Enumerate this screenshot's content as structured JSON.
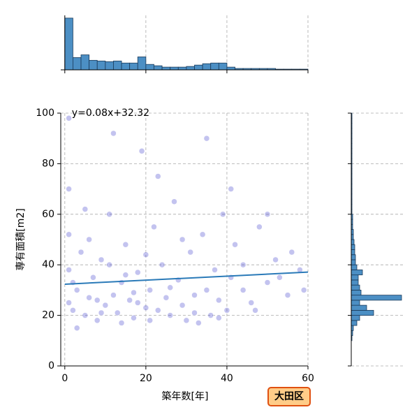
{
  "chart_data": {
    "type": "joint-scatter",
    "xlabel": "築年数[年]",
    "ylabel": "専有面積[m2]",
    "annotation": "y=0.08x+32.32",
    "badge": "大田区",
    "regression": {
      "slope": 0.08,
      "intercept": 32.32,
      "color": "#2a7ab8"
    },
    "xlim": [
      -1,
      60
    ],
    "ylim": [
      0,
      100
    ],
    "xticks": [
      0,
      20,
      40,
      60
    ],
    "yticks": [
      0,
      20,
      40,
      60,
      80,
      100
    ],
    "grid": true,
    "color": "#2626c4",
    "x": [
      1,
      1,
      1,
      1,
      1,
      2,
      3,
      4,
      5,
      6,
      7,
      8,
      9,
      10,
      11,
      12,
      13,
      14,
      15,
      16,
      17,
      18,
      19,
      20,
      21,
      22,
      23,
      24,
      25,
      26,
      27,
      28,
      29,
      30,
      31,
      32,
      33,
      34,
      35,
      36,
      37,
      38,
      39,
      40,
      41,
      42,
      44,
      46,
      48,
      50,
      52,
      55,
      58,
      2,
      5,
      8,
      11,
      14,
      17,
      20,
      23,
      26,
      29,
      32,
      35,
      38,
      41,
      44,
      47,
      50,
      53,
      56,
      59,
      3,
      6,
      9,
      12,
      15,
      18,
      21
    ],
    "y": [
      25,
      38,
      52,
      70,
      98,
      22,
      30,
      45,
      20,
      27,
      35,
      18,
      42,
      24,
      60,
      28,
      21,
      33,
      48,
      26,
      19,
      37,
      85,
      23,
      30,
      55,
      22,
      40,
      27,
      20,
      65,
      34,
      24,
      18,
      45,
      28,
      17,
      52,
      30,
      20,
      38,
      26,
      60,
      22,
      35,
      48,
      30,
      25,
      55,
      33,
      42,
      28,
      38,
      33,
      62,
      26,
      40,
      17,
      29,
      44,
      75,
      31,
      50,
      21,
      90,
      19,
      70,
      40,
      22,
      60,
      35,
      45,
      30,
      15,
      50,
      21,
      92,
      36,
      25,
      18
    ],
    "top_hist": {
      "bins": [
        0,
        2,
        4,
        6,
        8,
        10,
        12,
        14,
        16,
        18,
        20,
        22,
        24,
        26,
        28,
        30,
        32,
        34,
        36,
        38,
        40,
        42,
        44,
        46,
        48,
        50,
        52,
        54,
        56,
        58,
        60
      ],
      "counts": [
        76,
        18,
        22,
        14,
        13,
        12,
        13,
        10,
        10,
        19,
        8,
        6,
        4,
        4,
        4,
        5,
        7,
        9,
        10,
        10,
        4,
        2,
        2,
        2,
        2,
        2,
        1,
        1,
        1,
        1
      ],
      "ylim": [
        0,
        80
      ],
      "color": "#4c8fc4"
    },
    "right_hist": {
      "bins": [
        10,
        12,
        14,
        16,
        18,
        20,
        22,
        24,
        26,
        28,
        30,
        32,
        34,
        36,
        38,
        40,
        42,
        44,
        46,
        48,
        50,
        52,
        54,
        56,
        58,
        60,
        62,
        64,
        66,
        68,
        70,
        72,
        74,
        76,
        78,
        80,
        82,
        84,
        86,
        88,
        90,
        92,
        94,
        96,
        98,
        100
      ],
      "counts": [
        1,
        2,
        3,
        8,
        12,
        32,
        22,
        12,
        72,
        14,
        12,
        10,
        10,
        16,
        8,
        6,
        6,
        5,
        5,
        4,
        3,
        3,
        2,
        2,
        2,
        1,
        1,
        1,
        1,
        1,
        1,
        1,
        1,
        1,
        1,
        1,
        1,
        1,
        1,
        1,
        1,
        1,
        1,
        1,
        1
      ],
      "xlim": [
        0,
        75
      ],
      "color": "#4c8fc4"
    }
  }
}
